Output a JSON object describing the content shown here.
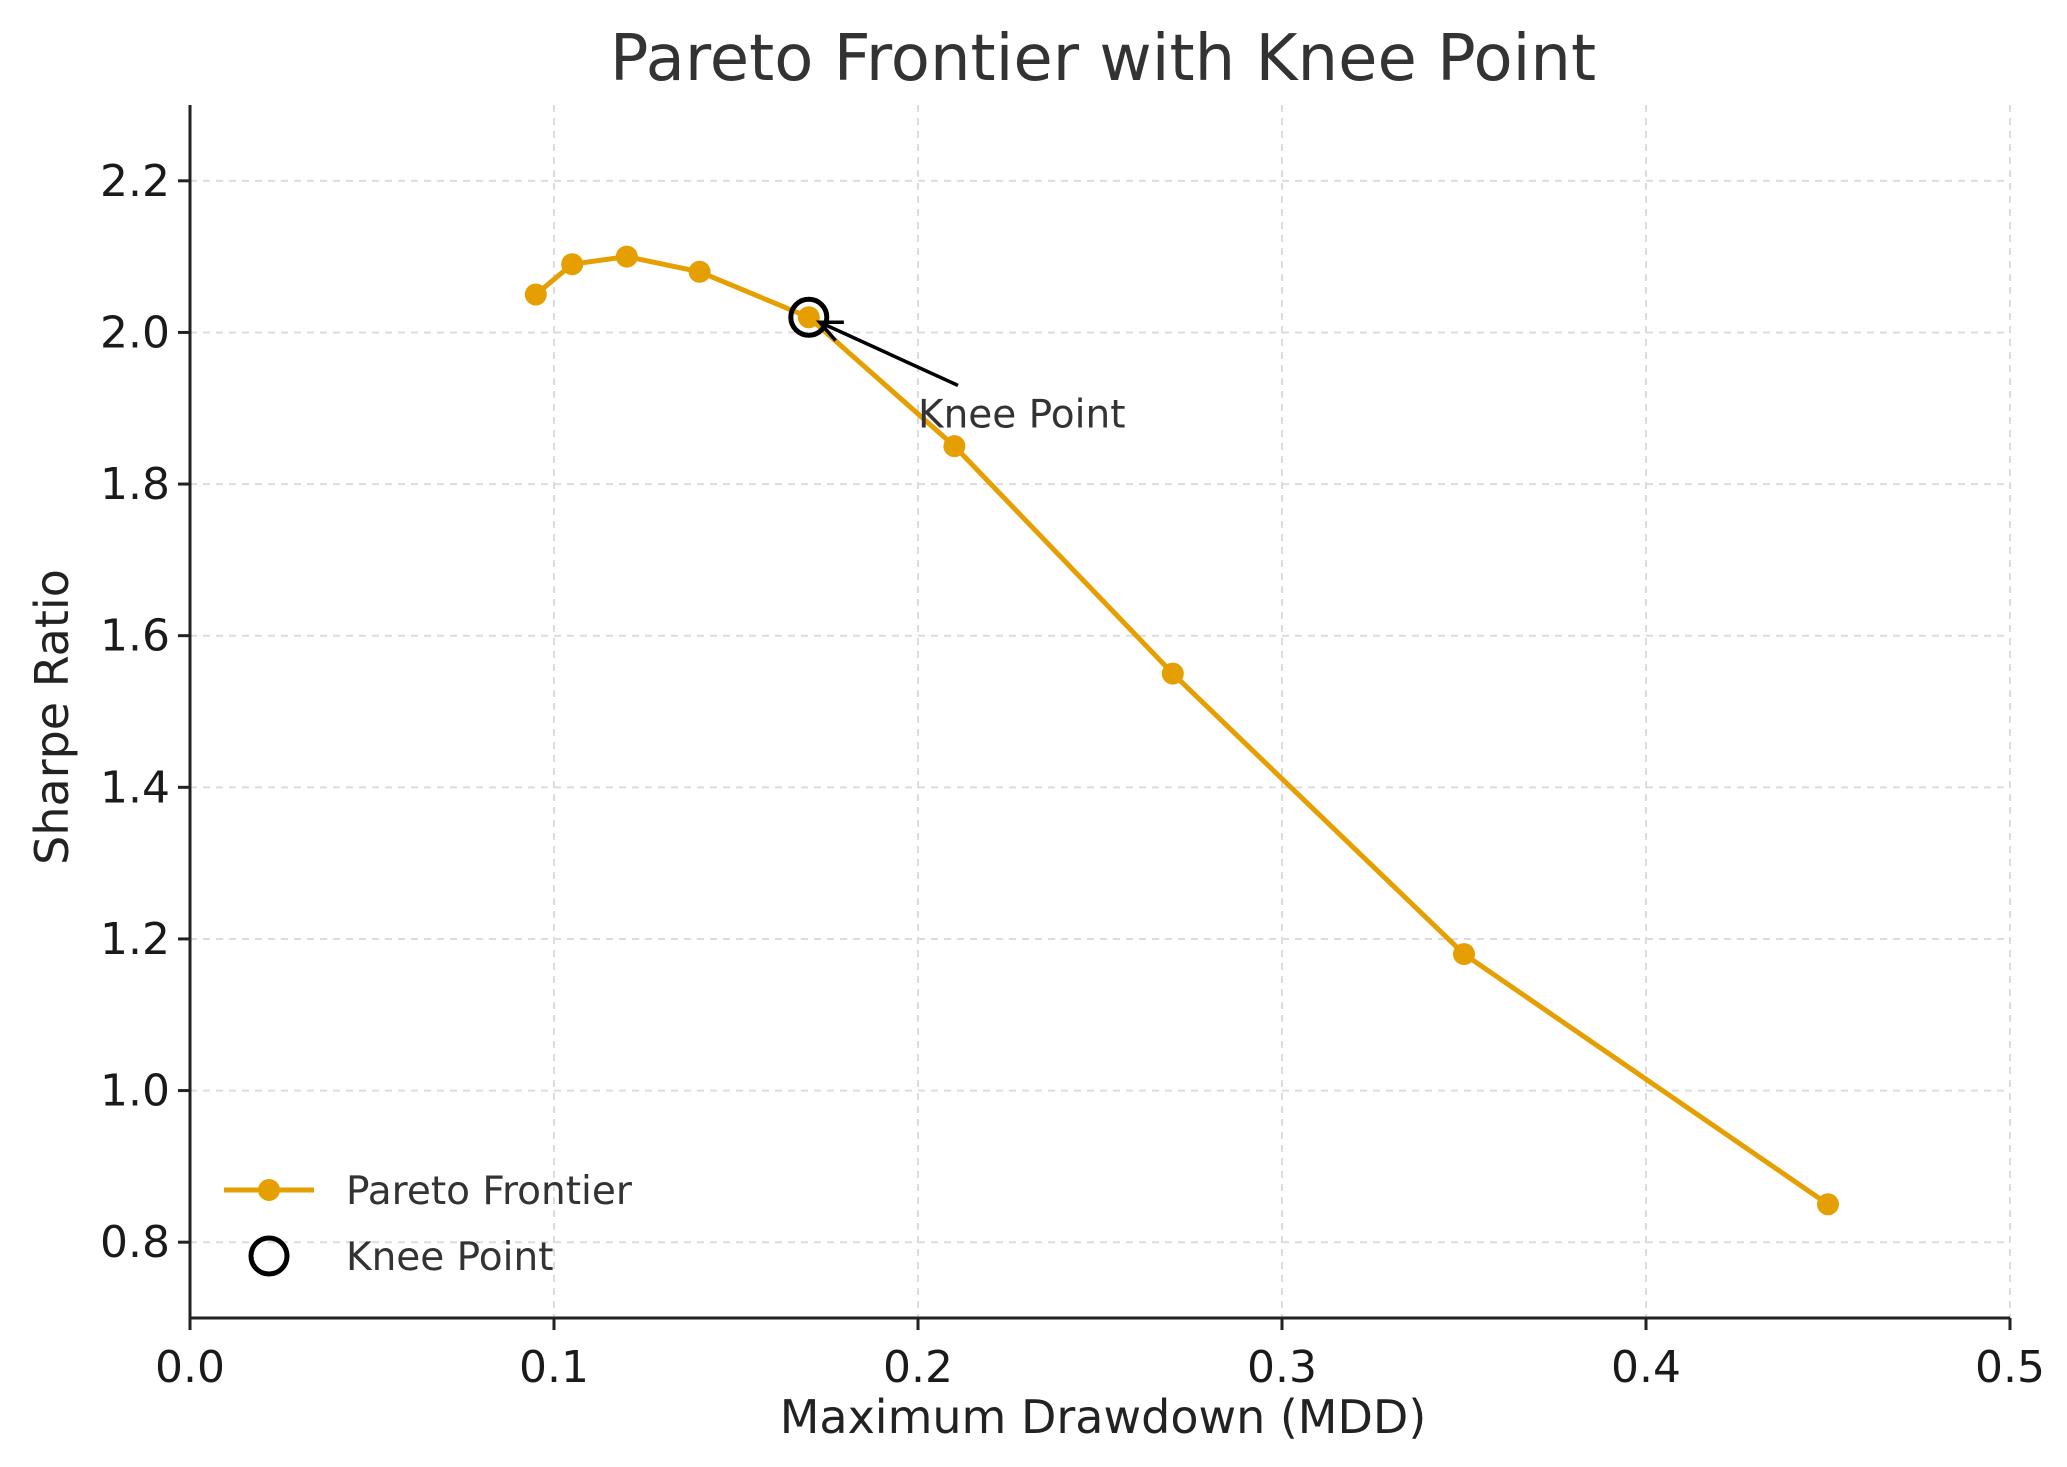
{
  "chart_data": {
    "type": "line",
    "title": "Pareto Frontier with Knee Point",
    "xlabel": "Maximum Drawdown (MDD)",
    "ylabel": "Sharpe Ratio",
    "xlim": [
      0.0,
      0.5
    ],
    "ylim": [
      0.7,
      2.3
    ],
    "xticks": [
      0.0,
      0.1,
      0.2,
      0.3,
      0.4,
      0.5
    ],
    "xtick_labels": [
      "0.0",
      "0.1",
      "0.2",
      "0.3",
      "0.4",
      "0.5"
    ],
    "yticks": [
      0.8,
      1.0,
      1.2,
      1.4,
      1.6,
      1.8,
      2.0,
      2.2
    ],
    "ytick_labels": [
      "0.8",
      "1.0",
      "1.2",
      "1.4",
      "1.6",
      "1.8",
      "2.0",
      "2.2"
    ],
    "grid": true,
    "legend_position": "lower-left",
    "series": [
      {
        "name": "Pareto Frontier",
        "color": "#E69F00",
        "marker": "filled-circle",
        "x": [
          0.095,
          0.105,
          0.12,
          0.14,
          0.17,
          0.21,
          0.27,
          0.35,
          0.45
        ],
        "y": [
          2.05,
          2.09,
          2.1,
          2.08,
          2.02,
          1.85,
          1.55,
          1.18,
          0.85
        ]
      },
      {
        "name": "Knee Point",
        "color": "#000000",
        "marker": "hollow-circle",
        "x": [
          0.17
        ],
        "y": [
          2.02
        ]
      }
    ],
    "annotation": {
      "text": "Knee Point",
      "point": [
        0.17,
        2.02
      ],
      "text_position": [
        0.2,
        1.88
      ],
      "arrow": true
    }
  }
}
